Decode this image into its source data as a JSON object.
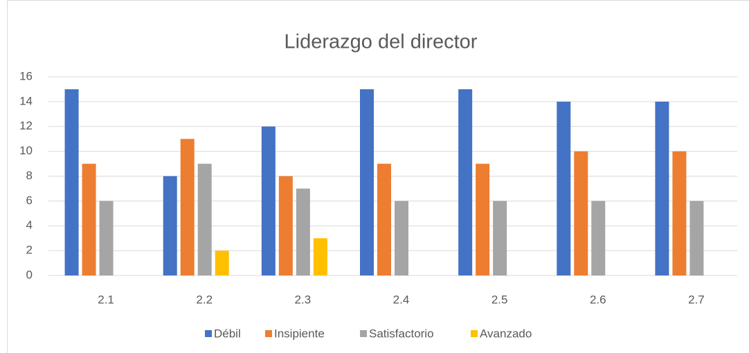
{
  "chart_data": {
    "type": "bar",
    "title": "Liderazgo del director",
    "categories": [
      "2.1",
      "2.2",
      "2.3",
      "2.4",
      "2.5",
      "2.6",
      "2.7"
    ],
    "series": [
      {
        "name": "Débil",
        "color": "#4472c4",
        "values": [
          15,
          8,
          12,
          15,
          15,
          14,
          14
        ]
      },
      {
        "name": "Insipiente",
        "color": "#ed7d31",
        "values": [
          9,
          11,
          8,
          9,
          9,
          10,
          10
        ]
      },
      {
        "name": "Satisfactorio",
        "color": "#a5a5a5",
        "values": [
          6,
          9,
          7,
          6,
          6,
          6,
          6
        ]
      },
      {
        "name": "Avanzado",
        "color": "#ffc000",
        "values": [
          0,
          2,
          3,
          0,
          0,
          0,
          0
        ]
      }
    ],
    "ylim": [
      0,
      16
    ],
    "yticks": [
      0,
      2,
      4,
      6,
      8,
      10,
      12,
      14,
      16
    ],
    "grid": true,
    "legend": "bottom"
  }
}
